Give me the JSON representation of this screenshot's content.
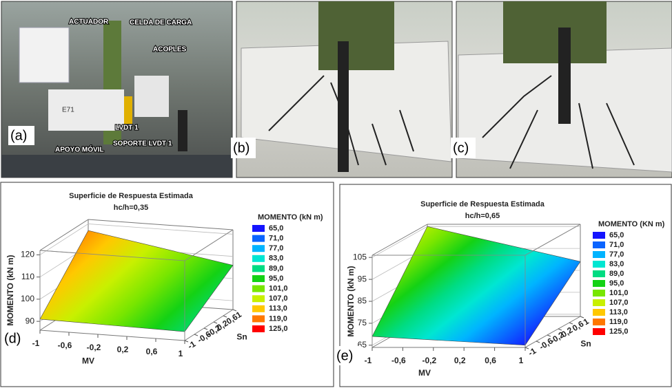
{
  "photos": {
    "a": {
      "label": "(a)",
      "annotations": [
        "ACTUADOR",
        "CELDA DE CARGA",
        "ACOPLES",
        "LVDT 1",
        "APOYO MÓVIL",
        "SOPORTE LVDT 1"
      ],
      "specimen": "E71"
    },
    "b": {
      "label": "(b)"
    },
    "c": {
      "label": "(c)"
    }
  },
  "chart_data": [
    {
      "type": "surface",
      "title": "Superficie de Respuesta Estimada",
      "subtitle": "hc/h=0,35",
      "panel_label": "(d)",
      "xlabel": "MV",
      "ylabel": "Sn",
      "zlabel": "MOMENTO (kN m)",
      "legend_title": "MOMENTO (kN m)",
      "x": [
        -1,
        1
      ],
      "y": [
        -1,
        1
      ],
      "z": [
        [
          91,
          90
        ],
        [
          117,
          106
        ]
      ],
      "xlim": [
        -1,
        1
      ],
      "xticks": [
        -1,
        {
          "value": -0.6,
          "label": "-0,6"
        },
        {
          "value": -0.2,
          "label": "-0,2"
        },
        {
          "value": 0.2,
          "label": "0,2"
        },
        {
          "value": 0.6,
          "label": "0,6"
        },
        1
      ],
      "ylim": [
        -1,
        1
      ],
      "yticks": [
        -1,
        {
          "value": -0.6,
          "label": "-0,6"
        },
        {
          "value": -0.2,
          "label": "-0,2"
        },
        {
          "value": 0.2,
          "label": "0,2"
        },
        {
          "value": 0.6,
          "label": "0,6"
        },
        1
      ],
      "zlim": [
        86,
        122
      ],
      "zticks": [
        90,
        100,
        110,
        120
      ],
      "levels": [
        {
          "value": 65,
          "label": "65,0"
        },
        {
          "value": 71,
          "label": "71,0"
        },
        {
          "value": 77,
          "label": "77,0"
        },
        {
          "value": 83,
          "label": "83,0"
        },
        {
          "value": 89,
          "label": "89,0"
        },
        {
          "value": 95,
          "label": "95,0"
        },
        {
          "value": 101,
          "label": "101,0"
        },
        {
          "value": 107,
          "label": "107,0"
        },
        {
          "value": 113,
          "label": "113,0"
        },
        {
          "value": 119,
          "label": "119,0"
        },
        {
          "value": 125,
          "label": "125,0"
        }
      ],
      "level_colors": [
        "#1414ff",
        "#0a64ff",
        "#00b4ff",
        "#00e6d2",
        "#00dc82",
        "#14d214",
        "#78e600",
        "#c8f000",
        "#ffc800",
        "#ff7800",
        "#ff0000"
      ]
    },
    {
      "type": "surface",
      "title": "Superficie de Respuesta Estimada",
      "subtitle": "hc/h=0,65",
      "panel_label": "(e)",
      "xlabel": "MV",
      "ylabel": "Sn",
      "zlabel": "MOMENTO (kN m)",
      "legend_title": "MOMENTO (KN m)",
      "x": [
        -1,
        1
      ],
      "y": [
        -1,
        1
      ],
      "z": [
        [
          69,
          65
        ],
        [
          105,
          89
        ]
      ],
      "xlim": [
        -1,
        1
      ],
      "xticks": [
        -1,
        {
          "value": -0.6,
          "label": "-0,6"
        },
        {
          "value": -0.2,
          "label": "-0,2"
        },
        {
          "value": 0.2,
          "label": "0,2"
        },
        {
          "value": 0.6,
          "label": "0,6"
        },
        1
      ],
      "ylim": [
        -1,
        1
      ],
      "yticks": [
        -1,
        {
          "value": -0.6,
          "label": "-0,6"
        },
        {
          "value": -0.2,
          "label": "-0,2"
        },
        {
          "value": 0.2,
          "label": "0,2"
        },
        {
          "value": 0.6,
          "label": "0,6"
        },
        1
      ],
      "zlim": [
        64,
        106
      ],
      "zticks": [
        65,
        75,
        85,
        95,
        105
      ],
      "levels": [
        {
          "value": 65,
          "label": "65,0"
        },
        {
          "value": 71,
          "label": "71,0"
        },
        {
          "value": 77,
          "label": "77,0"
        },
        {
          "value": 83,
          "label": "83,0"
        },
        {
          "value": 89,
          "label": "89,0"
        },
        {
          "value": 95,
          "label": "95,0"
        },
        {
          "value": 101,
          "label": "101,0"
        },
        {
          "value": 107,
          "label": "107,0"
        },
        {
          "value": 113,
          "label": "113,0"
        },
        {
          "value": 119,
          "label": "119,0"
        },
        {
          "value": 125,
          "label": "125,0"
        }
      ],
      "level_colors": [
        "#1414ff",
        "#0a64ff",
        "#00b4ff",
        "#00e6d2",
        "#00dc82",
        "#14d214",
        "#78e600",
        "#c8f000",
        "#ffc800",
        "#ff7800",
        "#ff0000"
      ]
    }
  ]
}
